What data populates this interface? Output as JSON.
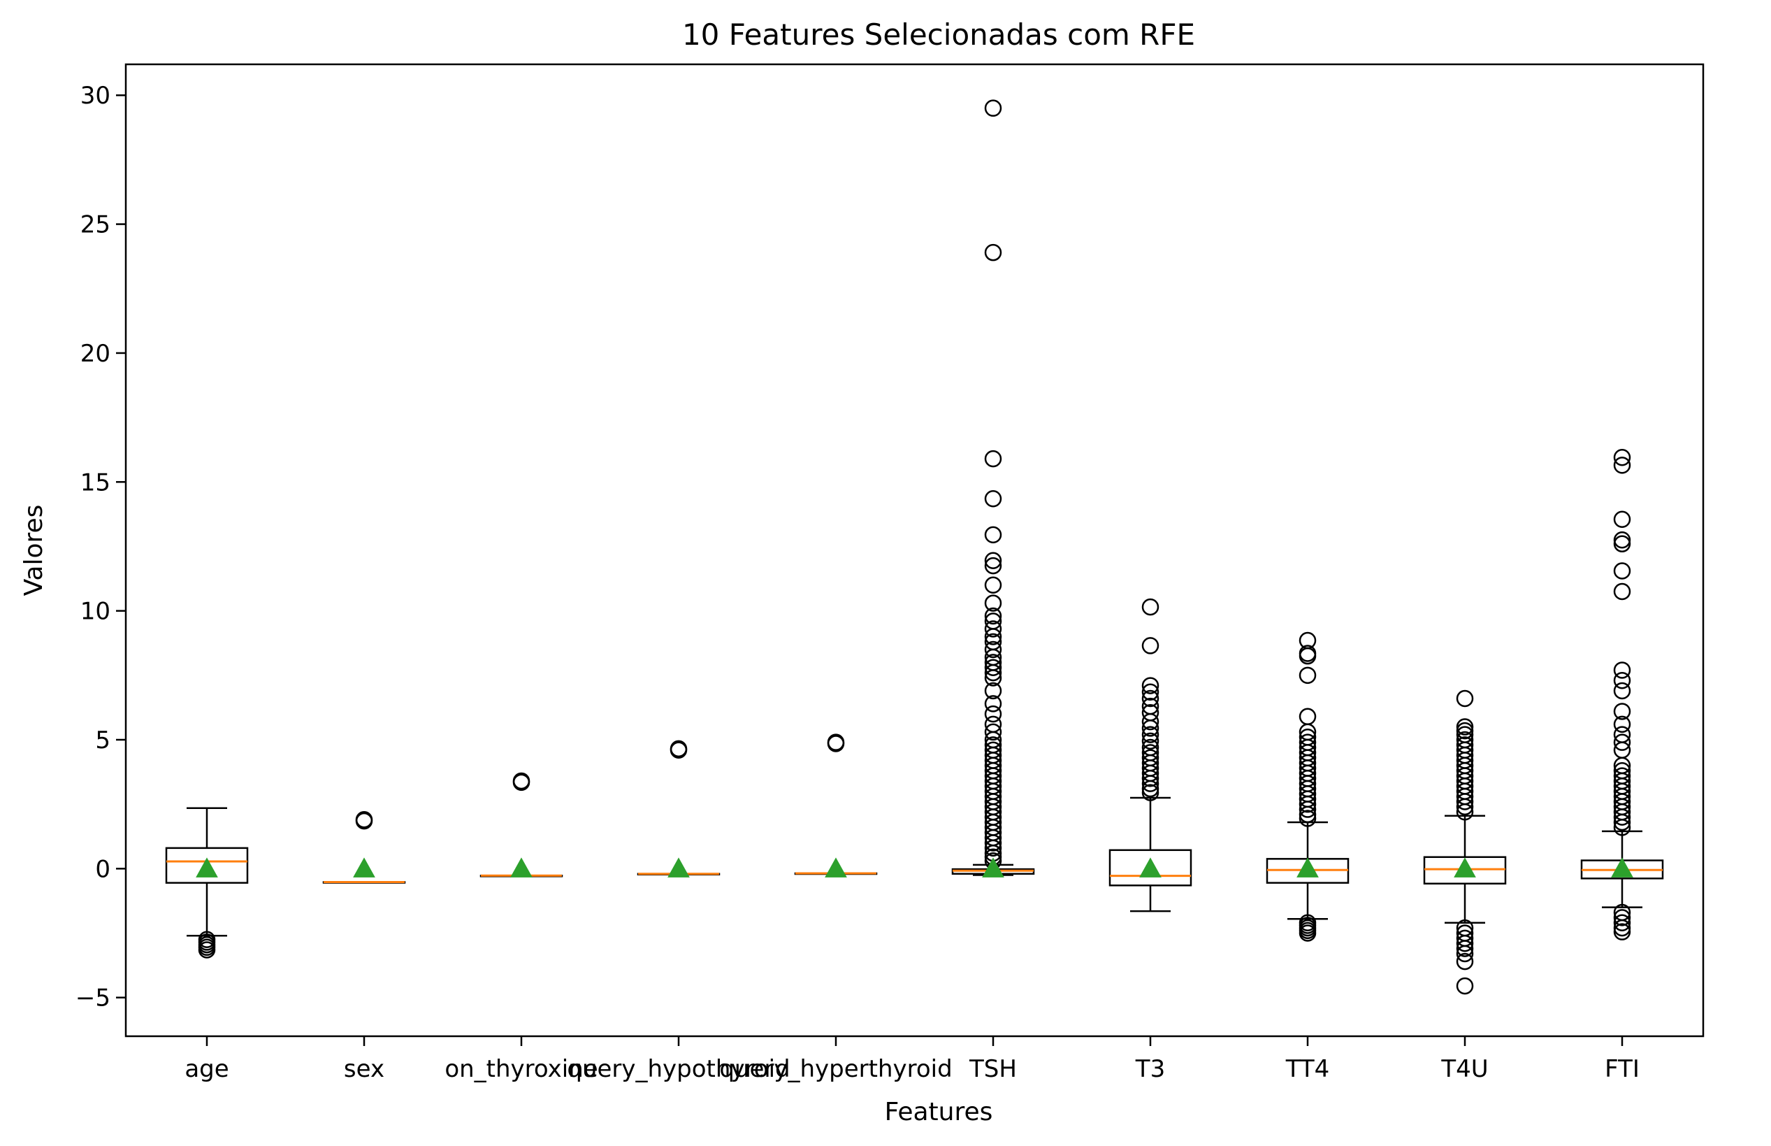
{
  "chart_data": {
    "type": "boxplot",
    "title": "10 Features Selecionadas com RFE",
    "xlabel": "Features",
    "ylabel": "Valores",
    "ylim": [
      -6.5,
      31.2
    ],
    "yticks": [
      -5,
      0,
      5,
      10,
      15,
      20,
      25,
      30
    ],
    "ytick_labels": [
      "−5",
      "0",
      "5",
      "10",
      "15",
      "20",
      "25",
      "30"
    ],
    "grid": false,
    "show_means": true,
    "colors": {
      "box": "#000000",
      "median": "#ff7f0e",
      "mean": "#2ca02c",
      "outlier": "#000000"
    },
    "categories": [
      "age",
      "sex",
      "on_thyroxine",
      "query_hypothyroid",
      "query_hyperthyroid",
      "TSH",
      "T3",
      "TT4",
      "T4U",
      "FTI"
    ],
    "boxes": [
      {
        "name": "age",
        "whislo": -2.6,
        "q1": -0.55,
        "med": 0.28,
        "q3": 0.8,
        "whishi": 2.35,
        "mean": 0.0,
        "fliers": [
          -2.75,
          -2.85,
          -2.95,
          -3.05,
          -3.15
        ]
      },
      {
        "name": "sex",
        "whislo": -0.52,
        "q1": -0.52,
        "med": -0.52,
        "q3": -0.52,
        "whishi": -0.52,
        "mean": 0.0,
        "fliers": [
          1.85,
          1.9
        ]
      },
      {
        "name": "on_thyroxine",
        "whislo": -0.27,
        "q1": -0.27,
        "med": -0.27,
        "q3": -0.27,
        "whishi": -0.27,
        "mean": 0.0,
        "fliers": [
          3.35,
          3.4
        ]
      },
      {
        "name": "query_hypothyroid",
        "whislo": -0.2,
        "q1": -0.2,
        "med": -0.2,
        "q3": -0.2,
        "whishi": -0.2,
        "mean": 0.0,
        "fliers": [
          4.6,
          4.65
        ]
      },
      {
        "name": "query_hyperthyroid",
        "whislo": -0.18,
        "q1": -0.18,
        "med": -0.18,
        "q3": -0.18,
        "whishi": -0.18,
        "mean": 0.0,
        "fliers": [
          4.85,
          4.9
        ]
      },
      {
        "name": "TSH",
        "whislo": -0.25,
        "q1": -0.2,
        "med": -0.08,
        "q3": -0.02,
        "whishi": 0.15,
        "mean": 0.0,
        "fliers": [
          29.5,
          23.9,
          15.9,
          14.35,
          12.95,
          11.95,
          11.75,
          11.0,
          10.3,
          9.8,
          9.6,
          9.3,
          9.0,
          8.8,
          8.5,
          8.2,
          8.0,
          7.8,
          7.6,
          7.4,
          6.9,
          6.4,
          6.0,
          5.6,
          5.3,
          5.0,
          4.8,
          4.6,
          4.4,
          4.2,
          4.0,
          3.8,
          3.6,
          3.4,
          3.2,
          3.0,
          2.8,
          2.6,
          2.4,
          2.2,
          2.0,
          1.8,
          1.6,
          1.4,
          1.2,
          1.0,
          0.8,
          0.6,
          0.45,
          0.3
        ]
      },
      {
        "name": "T3",
        "whislo": -1.65,
        "q1": -0.65,
        "med": -0.28,
        "q3": 0.72,
        "whishi": 2.75,
        "mean": 0.0,
        "fliers": [
          10.15,
          8.65,
          7.1,
          6.85,
          6.6,
          6.3,
          6.05,
          5.7,
          5.45,
          5.2,
          4.95,
          4.7,
          4.5,
          4.3,
          4.1,
          3.9,
          3.7,
          3.5,
          3.3,
          3.1,
          2.95
        ]
      },
      {
        "name": "TT4",
        "whislo": -1.95,
        "q1": -0.55,
        "med": -0.05,
        "q3": 0.38,
        "whishi": 1.8,
        "mean": 0.0,
        "fliers": [
          8.85,
          8.35,
          8.25,
          7.5,
          5.9,
          5.3,
          5.1,
          4.9,
          4.7,
          4.5,
          4.3,
          4.1,
          3.9,
          3.7,
          3.5,
          3.3,
          3.1,
          2.9,
          2.7,
          2.5,
          2.3,
          2.1,
          1.95,
          -2.1,
          -2.2,
          -2.3,
          -2.4,
          -2.5
        ]
      },
      {
        "name": "T4U",
        "whislo": -2.1,
        "q1": -0.58,
        "med": -0.02,
        "q3": 0.45,
        "whishi": 2.05,
        "mean": 0.0,
        "fliers": [
          6.6,
          5.5,
          5.35,
          5.2,
          5.0,
          4.8,
          4.6,
          4.4,
          4.2,
          4.0,
          3.8,
          3.6,
          3.4,
          3.2,
          3.0,
          2.8,
          2.6,
          2.4,
          2.2,
          -2.3,
          -2.5,
          -2.7,
          -2.9,
          -3.1,
          -3.3,
          -3.6,
          -4.55
        ]
      },
      {
        "name": "FTI",
        "whislo": -1.5,
        "q1": -0.38,
        "med": -0.05,
        "q3": 0.32,
        "whishi": 1.45,
        "mean": 0.0,
        "fliers": [
          15.95,
          15.65,
          13.55,
          12.75,
          12.6,
          11.55,
          10.75,
          7.7,
          7.3,
          6.9,
          6.1,
          5.6,
          5.2,
          4.9,
          4.6,
          4.0,
          3.8,
          3.6,
          3.4,
          3.2,
          3.0,
          2.8,
          2.6,
          2.4,
          2.2,
          2.0,
          1.8,
          1.6,
          -1.7,
          -1.9,
          -2.1,
          -2.3,
          -2.45
        ]
      }
    ]
  }
}
